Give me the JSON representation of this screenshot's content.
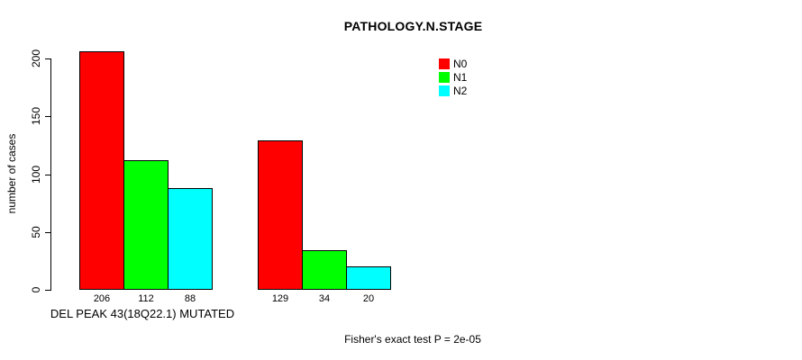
{
  "chart_data": {
    "type": "bar",
    "title": "PATHOLOGY.N.STAGE",
    "xlabel": "DEL PEAK 43(18Q22.1) MUTATED",
    "ylabel": "number of cases",
    "footnote": "Fisher's exact test P = 2e-05",
    "ylim": [
      0,
      200
    ],
    "yticks": [
      0,
      50,
      100,
      150,
      200
    ],
    "grid": false,
    "legend_position": "top-right",
    "bar_value_labels_shown": true,
    "series": [
      {
        "name": "N0",
        "color": "#ff0000",
        "values": [
          206,
          129
        ]
      },
      {
        "name": "N1",
        "color": "#00ff00",
        "values": [
          112,
          34
        ]
      },
      {
        "name": "N2",
        "color": "#00ffff",
        "values": [
          88,
          20
        ]
      }
    ],
    "group_value_labels": [
      [
        206,
        112,
        88
      ],
      [
        129,
        34,
        20
      ]
    ]
  }
}
